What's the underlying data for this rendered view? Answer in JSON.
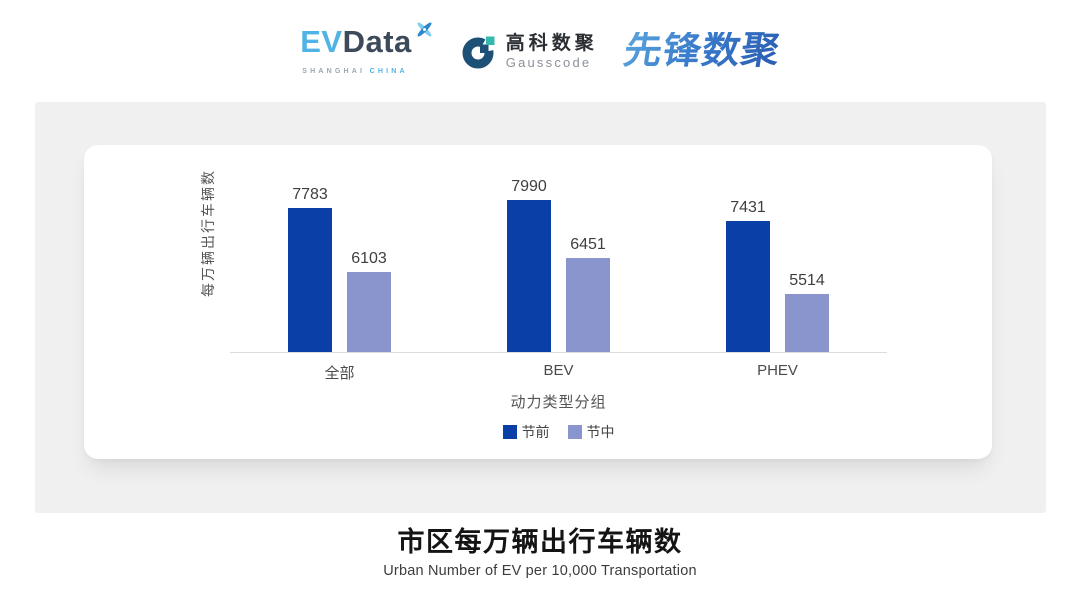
{
  "header": {
    "evdata": {
      "word_ev": "EV",
      "word_data": "Data",
      "sub_left": "SHANGHAI",
      "sub_right": "CHINA"
    },
    "gausscode": {
      "cn": "高科数聚",
      "en": "Gausscode"
    },
    "xianfeng": "先锋数聚"
  },
  "chart_data": {
    "type": "bar",
    "categories": [
      "全部",
      "BEV",
      "PHEV"
    ],
    "series": [
      {
        "name": "节前",
        "color": "#0a3fa8",
        "values": [
          7783,
          7990,
          7431
        ]
      },
      {
        "name": "节中",
        "color": "#8a95cd",
        "values": [
          6103,
          6451,
          5514
        ]
      }
    ],
    "ylabel": "每万辆出行车辆数",
    "xlabel": "动力类型分组",
    "ylim": [
      4000,
      8400
    ],
    "grid": false,
    "legend_position": "bottom",
    "bar_value_labels": true
  },
  "footer": {
    "title": "市区每万辆出行车辆数",
    "subtitle": "Urban Number of EV per 10,000 Transportation"
  },
  "colors": {
    "pre_holiday_bar": "#0a3fa8",
    "mid_holiday_bar": "#8a95cd",
    "panel_background": "#f0f0f1",
    "axis_line": "#dcdcdc",
    "evdata_blue": "#4fb3e6",
    "evdata_slate": "#3d4a5a",
    "gausscode_navy": "#1d5077",
    "gausscode_teal": "#35b8b0",
    "xianfeng_blue": "#3277c6"
  }
}
